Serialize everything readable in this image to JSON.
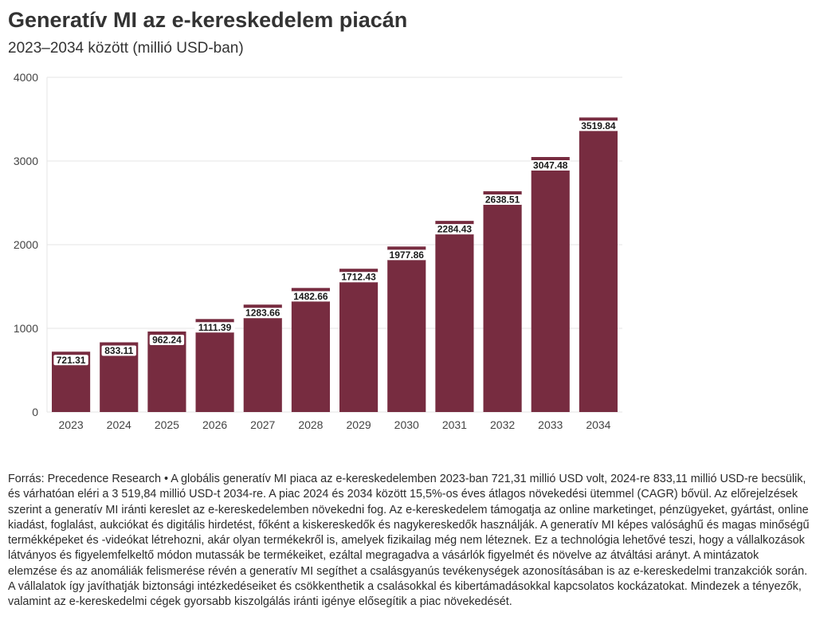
{
  "title": "Generatív MI az e-kereskedelem piacán",
  "subtitle": "2023–2034 között (millió USD-ban)",
  "source_text": "Forrás: Precedence Research • A globális generatív MI piaca az e-kereskedelemben 2023-ban 721,31 millió USD volt, 2024-re 833,11 millió USD-re becsülik, és várhatóan eléri a 3 519,84 millió USD-t 2034-re. A piac 2024 és 2034 között 15,5%-os éves átlagos növekedési ütemmel (CAGR) bővül. Az előrejelzések szerint a generatív MI iránti kereslet az e-kereskedelemben növekedni fog. Az e-kereskedelem támogatja az online marketinget, pénzügyeket, gyártást, online kiadást, foglalást, aukciókat és digitális hirdetést, főként a kiskereskedők és nagykereskedők használják. A generatív MI képes valósághű és magas minőségű termékképeket és -videókat létrehozni, akár olyan termékekről is, amelyek fizikailag még nem léteznek. Ez a technológia lehetővé teszi, hogy a vállalkozások látványos és figyelemfelkeltő módon mutassák be termékeiket, ezáltal megragadva a vásárlók figyelmét és növelve az átváltási arányt. A mintázatok elemzése és az anomáliák felismerése révén a generatív MI segíthet a csalásgyanús tevékenységek azonosításában is az e-kereskedelmi tranzakciók során. A vállalatok így javíthatják biztonsági intézkedéseiket és csökkenthetik a csalásokkal és kibertámadásokkal kapcsolatos kockázatokat. Mindezek a tényezők, valamint az e-kereskedelmi cégek gyorsabb kiszolgálás iránti igénye elősegítik a piac növekedését.",
  "colors": {
    "bar": "#772c40",
    "grid": "#e6e6e6",
    "label_bg": "#ffffff"
  },
  "chart_data": {
    "type": "bar",
    "title": "Generatív MI az e-kereskedelem piacán",
    "subtitle": "2023–2034 között (millió USD-ban)",
    "xlabel": "",
    "ylabel": "",
    "categories": [
      "2023",
      "2024",
      "2025",
      "2026",
      "2027",
      "2028",
      "2029",
      "2030",
      "2031",
      "2032",
      "2033",
      "2034"
    ],
    "values": [
      721.31,
      833.11,
      962.24,
      1111.39,
      1283.66,
      1482.66,
      1712.43,
      1977.86,
      2284.43,
      2638.51,
      3047.48,
      3519.84
    ],
    "value_labels": [
      "721.31",
      "833.11",
      "962.24",
      "1111.39",
      "1283.66",
      "1482.66",
      "1712.43",
      "1977.86",
      "2284.43",
      "2638.51",
      "3047.48",
      "3519.84"
    ],
    "yticks": [
      "0",
      "1000",
      "2000",
      "3000",
      "4000"
    ],
    "ylim": [
      0,
      4000
    ],
    "grid": true,
    "legend": "none"
  }
}
